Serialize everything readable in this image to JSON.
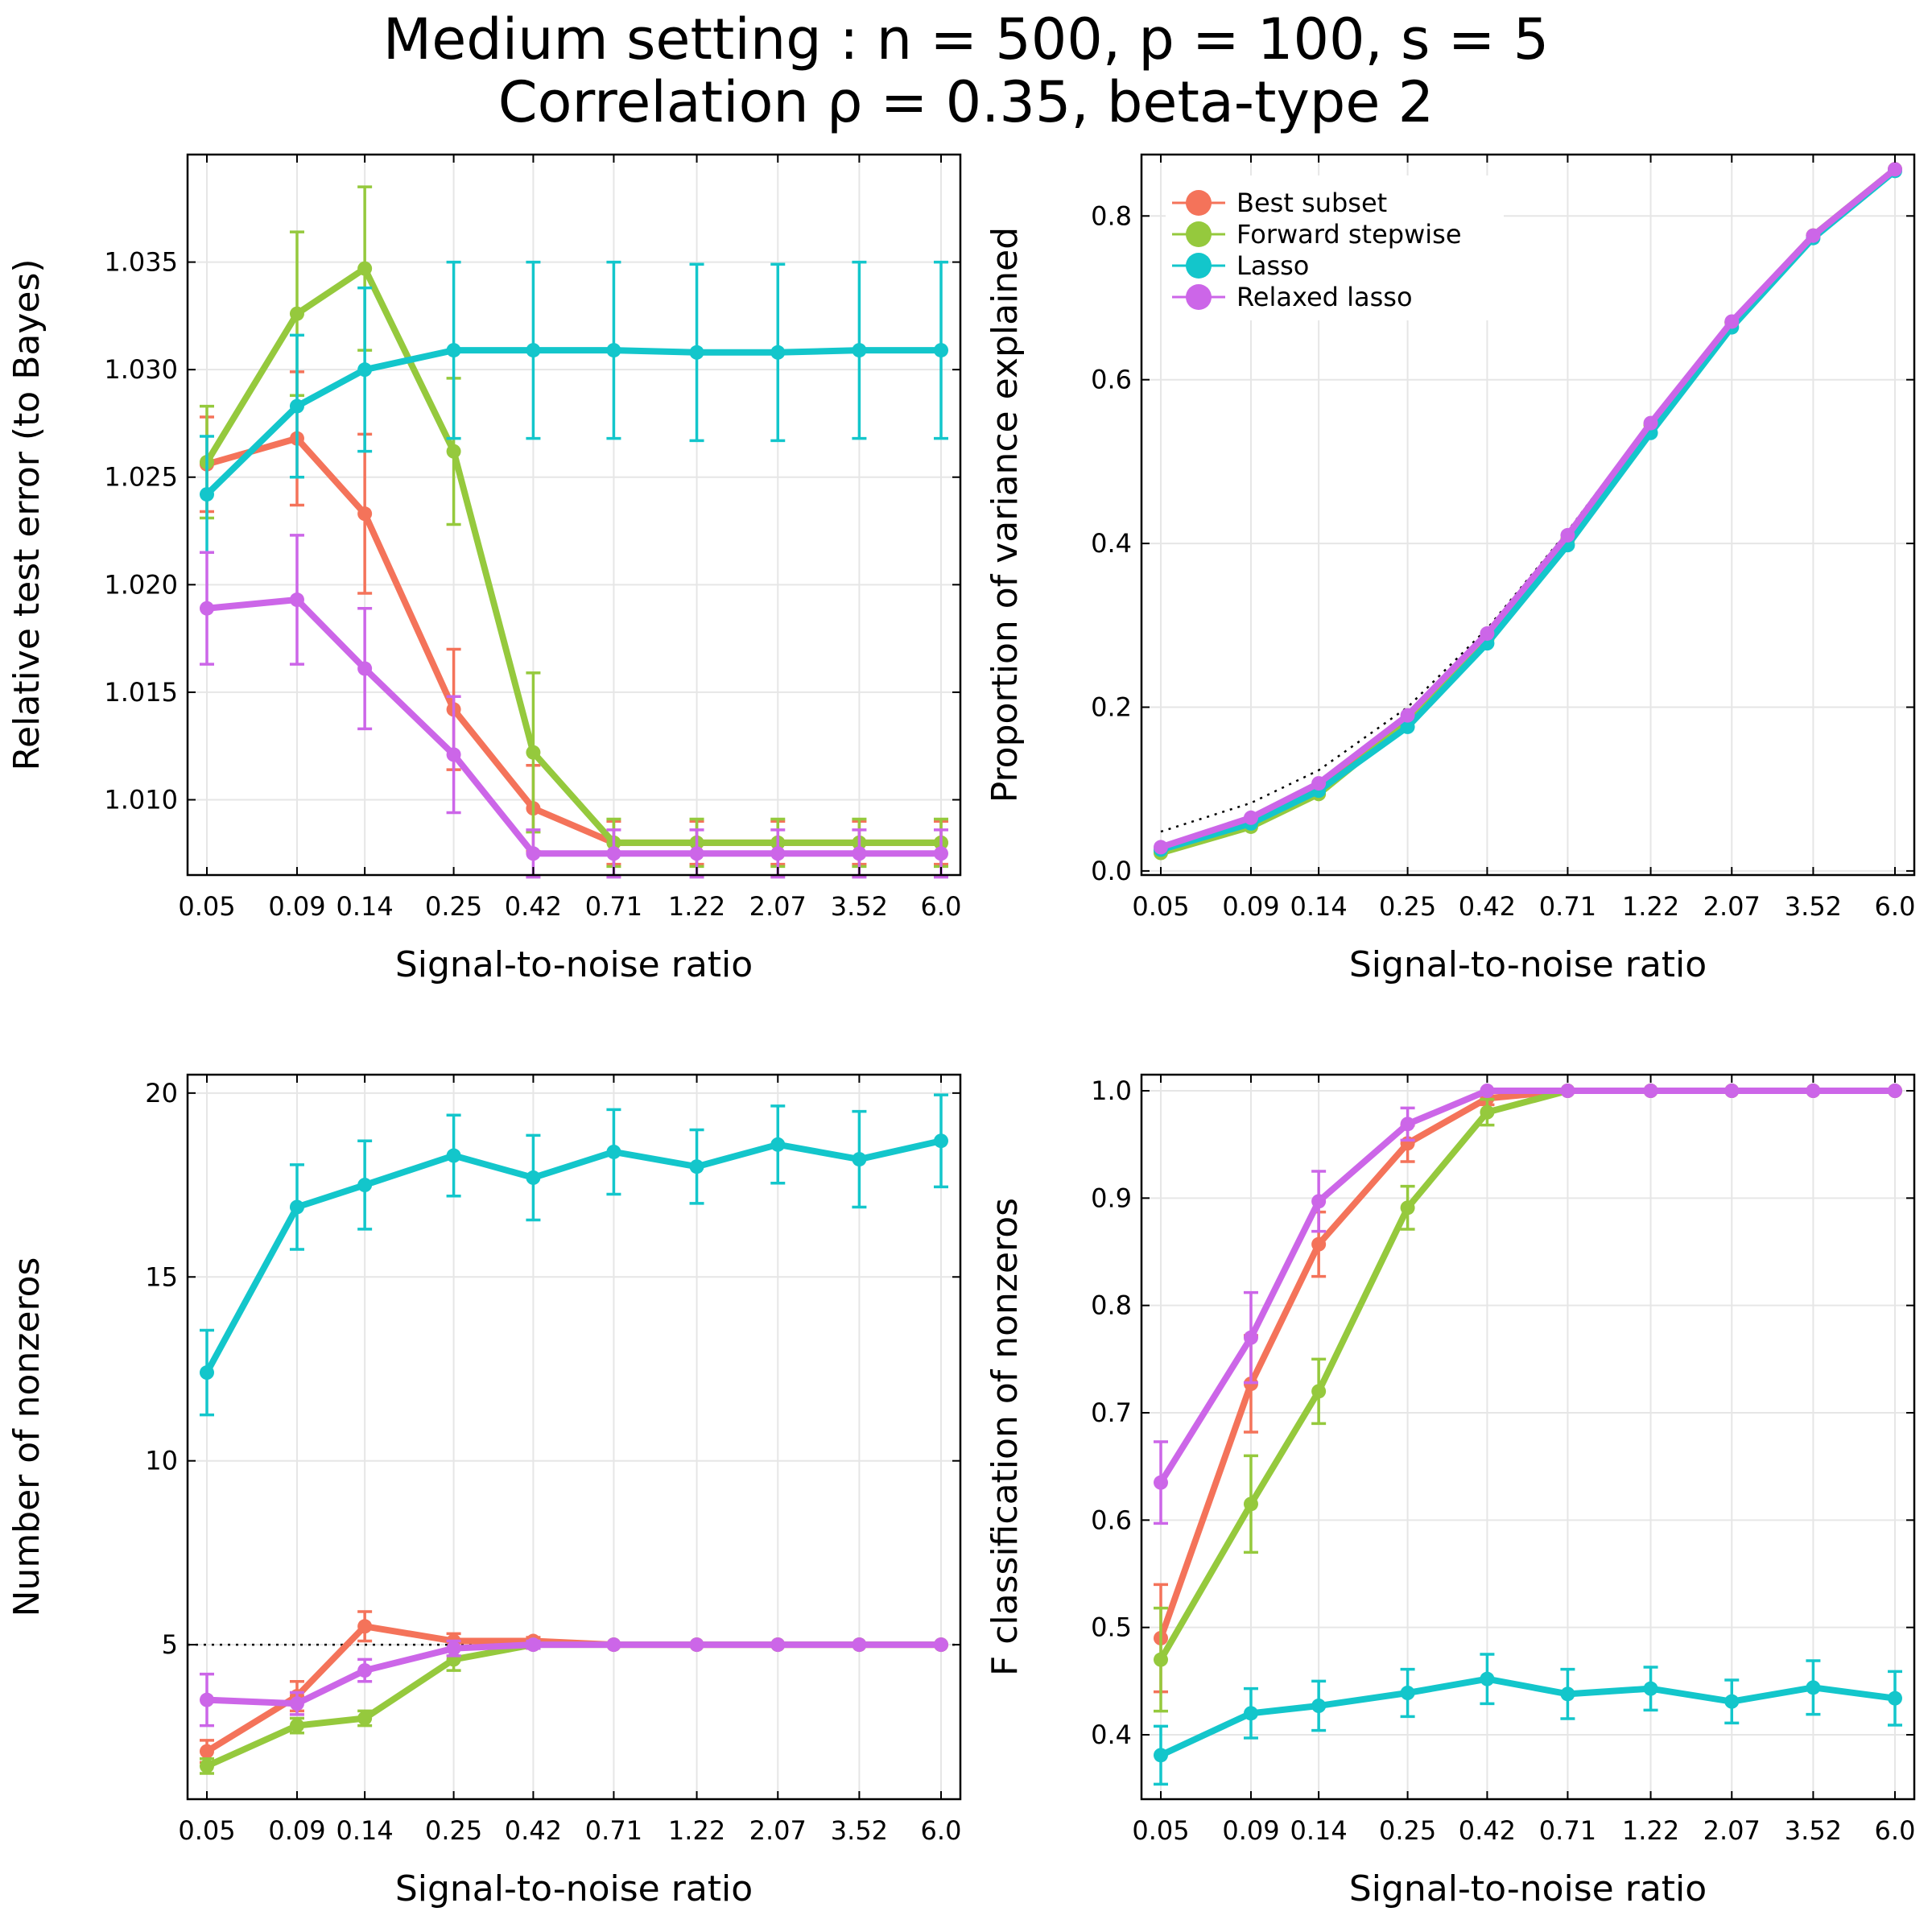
{
  "title_line1": "Medium setting : n = 500, p = 100, s = 5",
  "title_line2": "Correlation ρ = 0.35, beta-type 2",
  "colors": {
    "Best subset": "#f4735a",
    "Forward stepwise": "#95c93d",
    "Lasso": "#13c6cb",
    "Relaxed lasso": "#cc66e8"
  },
  "chart_data": [
    {
      "type": "line",
      "xlabel": "Signal-to-noise ratio",
      "ylabel": "Relative test error (to Bayes)",
      "x": [
        0.05,
        0.09,
        0.14,
        0.25,
        0.42,
        0.71,
        1.22,
        2.07,
        3.52,
        6.0
      ],
      "x_tick_labels": [
        "0.05",
        "0.09",
        "0.14",
        "0.25",
        "0.42",
        "0.71",
        "1.22",
        "2.07",
        "3.52",
        "6.0"
      ],
      "x_scale": "log",
      "ylim": [
        1.0065,
        1.04
      ],
      "y_ticks": [
        1.01,
        1.015,
        1.02,
        1.025,
        1.03,
        1.035
      ],
      "y_tick_labels": [
        "1.010",
        "1.015",
        "1.020",
        "1.025",
        "1.030",
        "1.035"
      ],
      "grid": true,
      "legend": false,
      "series": [
        {
          "name": "Best subset",
          "values": [
            1.0256,
            1.0268,
            1.0233,
            1.0142,
            1.0096,
            1.008,
            1.008,
            1.008,
            1.008,
            1.008
          ],
          "errors": [
            0.0022,
            0.0031,
            0.0037,
            0.0028,
            0.002,
            0.001,
            0.001,
            0.001,
            0.001,
            0.001
          ]
        },
        {
          "name": "Forward stepwise",
          "values": [
            1.0257,
            1.0326,
            1.0347,
            1.0262,
            1.0122,
            1.008,
            1.008,
            1.008,
            1.008,
            1.008
          ],
          "errors": [
            0.0026,
            0.0038,
            0.0038,
            0.0034,
            0.0037,
            0.0011,
            0.0011,
            0.0011,
            0.0011,
            0.0011
          ]
        },
        {
          "name": "Lasso",
          "values": [
            1.0242,
            1.0283,
            1.03,
            1.0309,
            1.0309,
            1.0309,
            1.0308,
            1.0308,
            1.0309,
            1.0309
          ],
          "errors": [
            0.0027,
            0.0033,
            0.0038,
            0.0041,
            0.0041,
            0.0041,
            0.0041,
            0.0041,
            0.0041,
            0.0041
          ]
        },
        {
          "name": "Relaxed lasso",
          "values": [
            1.0189,
            1.0193,
            1.0161,
            1.0121,
            1.0075,
            1.0075,
            1.0075,
            1.0075,
            1.0075,
            1.0075
          ],
          "errors": [
            0.0026,
            0.003,
            0.0028,
            0.0027,
            0.0011,
            0.0011,
            0.0011,
            0.0011,
            0.0011,
            0.0011
          ]
        }
      ]
    },
    {
      "type": "line",
      "xlabel": "Signal-to-noise ratio",
      "ylabel": "Proportion of variance explained",
      "x": [
        0.05,
        0.09,
        0.14,
        0.25,
        0.42,
        0.71,
        1.22,
        2.07,
        3.52,
        6.0
      ],
      "x_tick_labels": [
        "0.05",
        "0.09",
        "0.14",
        "0.25",
        "0.42",
        "0.71",
        "1.22",
        "2.07",
        "3.52",
        "6.0"
      ],
      "x_scale": "log",
      "ylim": [
        -0.005,
        0.875
      ],
      "y_ticks": [
        0.0,
        0.2,
        0.4,
        0.6,
        0.8
      ],
      "y_tick_labels": [
        "0.0",
        "0.2",
        "0.4",
        "0.6",
        "0.8"
      ],
      "grid": true,
      "legend": "top-left",
      "reference_line": {
        "type": "curve",
        "x": [
          0.05,
          0.09,
          0.14,
          0.25,
          0.42,
          0.71,
          1.22,
          2.07,
          3.52,
          6.0
        ],
        "y": [
          0.048,
          0.083,
          0.123,
          0.2,
          0.296,
          0.415,
          0.55,
          0.674,
          0.779,
          0.857
        ]
      },
      "series": [
        {
          "name": "Best subset",
          "values": [
            0.025,
            0.058,
            0.1,
            0.185,
            0.285,
            0.405,
            0.545,
            0.67,
            0.776,
            0.857
          ]
        },
        {
          "name": "Forward stepwise",
          "values": [
            0.022,
            0.054,
            0.094,
            0.182,
            0.283,
            0.405,
            0.545,
            0.67,
            0.776,
            0.857
          ]
        },
        {
          "name": "Lasso",
          "values": [
            0.026,
            0.058,
            0.098,
            0.176,
            0.278,
            0.398,
            0.535,
            0.664,
            0.773,
            0.855
          ]
        },
        {
          "name": "Relaxed lasso",
          "values": [
            0.029,
            0.065,
            0.107,
            0.19,
            0.29,
            0.41,
            0.547,
            0.671,
            0.776,
            0.857
          ]
        }
      ]
    },
    {
      "type": "line",
      "xlabel": "Signal-to-noise ratio",
      "ylabel": "Number of nonzeros",
      "x": [
        0.05,
        0.09,
        0.14,
        0.25,
        0.42,
        0.71,
        1.22,
        2.07,
        3.52,
        6.0
      ],
      "x_tick_labels": [
        "0.05",
        "0.09",
        "0.14",
        "0.25",
        "0.42",
        "0.71",
        "1.22",
        "2.07",
        "3.52",
        "6.0"
      ],
      "x_scale": "log",
      "ylim": [
        0.8,
        20.5
      ],
      "y_ticks": [
        5,
        10,
        15,
        20
      ],
      "y_tick_labels": [
        "5",
        "10",
        "15",
        "20"
      ],
      "grid": true,
      "legend": false,
      "reference_line": {
        "type": "horizontal",
        "y": 5
      },
      "series": [
        {
          "name": "Best subset",
          "values": [
            2.1,
            3.6,
            5.5,
            5.1,
            5.1,
            5.0,
            5.0,
            5.0,
            5.0,
            5.0
          ],
          "errors": [
            0.3,
            0.4,
            0.4,
            0.2,
            0.1,
            0.0,
            0.0,
            0.0,
            0.0,
            0.0
          ]
        },
        {
          "name": "Forward stepwise",
          "values": [
            1.7,
            2.8,
            3.0,
            4.6,
            5.0,
            5.0,
            5.0,
            5.0,
            5.0,
            5.0
          ],
          "errors": [
            0.2,
            0.2,
            0.2,
            0.3,
            0.1,
            0.0,
            0.0,
            0.0,
            0.0,
            0.0
          ]
        },
        {
          "name": "Lasso",
          "values": [
            12.4,
            16.9,
            17.5,
            18.3,
            17.7,
            18.4,
            18.0,
            18.6,
            18.2,
            18.7
          ],
          "errors": [
            1.15,
            1.15,
            1.2,
            1.1,
            1.15,
            1.15,
            1.0,
            1.05,
            1.3,
            1.25
          ]
        },
        {
          "name": "Relaxed lasso",
          "values": [
            3.5,
            3.4,
            4.3,
            4.9,
            5.0,
            5.0,
            5.0,
            5.0,
            5.0,
            5.0
          ],
          "errors": [
            0.7,
            0.3,
            0.3,
            0.2,
            0.1,
            0.0,
            0.0,
            0.0,
            0.0,
            0.0
          ]
        }
      ]
    },
    {
      "type": "line",
      "xlabel": "Signal-to-noise ratio",
      "ylabel": "F classification of nonzeros",
      "x": [
        0.05,
        0.09,
        0.14,
        0.25,
        0.42,
        0.71,
        1.22,
        2.07,
        3.52,
        6.0
      ],
      "x_tick_labels": [
        "0.05",
        "0.09",
        "0.14",
        "0.25",
        "0.42",
        "0.71",
        "1.22",
        "2.07",
        "3.52",
        "6.0"
      ],
      "x_scale": "log",
      "ylim": [
        0.34,
        1.015
      ],
      "y_ticks": [
        0.4,
        0.5,
        0.6,
        0.7,
        0.8,
        0.9,
        1.0
      ],
      "y_tick_labels": [
        "0.4",
        "0.5",
        "0.6",
        "0.7",
        "0.8",
        "0.9",
        "1.0"
      ],
      "grid": true,
      "legend": false,
      "series": [
        {
          "name": "Best subset",
          "values": [
            0.49,
            0.727,
            0.857,
            0.951,
            0.993,
            1.0,
            1.0,
            1.0,
            1.0,
            1.0
          ],
          "errors": [
            0.05,
            0.045,
            0.03,
            0.017,
            0.006,
            0.0,
            0.0,
            0.0,
            0.0,
            0.0
          ]
        },
        {
          "name": "Forward stepwise",
          "values": [
            0.47,
            0.615,
            0.72,
            0.891,
            0.98,
            1.0,
            1.0,
            1.0,
            1.0,
            1.0
          ],
          "errors": [
            0.048,
            0.045,
            0.03,
            0.02,
            0.012,
            0.0,
            0.0,
            0.0,
            0.0,
            0.0
          ]
        },
        {
          "name": "Lasso",
          "values": [
            0.381,
            0.42,
            0.427,
            0.439,
            0.452,
            0.438,
            0.443,
            0.431,
            0.444,
            0.434
          ],
          "errors": [
            0.027,
            0.023,
            0.023,
            0.022,
            0.023,
            0.023,
            0.02,
            0.02,
            0.025,
            0.025
          ]
        },
        {
          "name": "Relaxed lasso",
          "values": [
            0.635,
            0.77,
            0.897,
            0.969,
            1.0,
            1.0,
            1.0,
            1.0,
            1.0,
            1.0
          ],
          "errors": [
            0.038,
            0.042,
            0.028,
            0.015,
            0.0,
            0.0,
            0.0,
            0.0,
            0.0,
            0.0
          ]
        }
      ]
    }
  ]
}
